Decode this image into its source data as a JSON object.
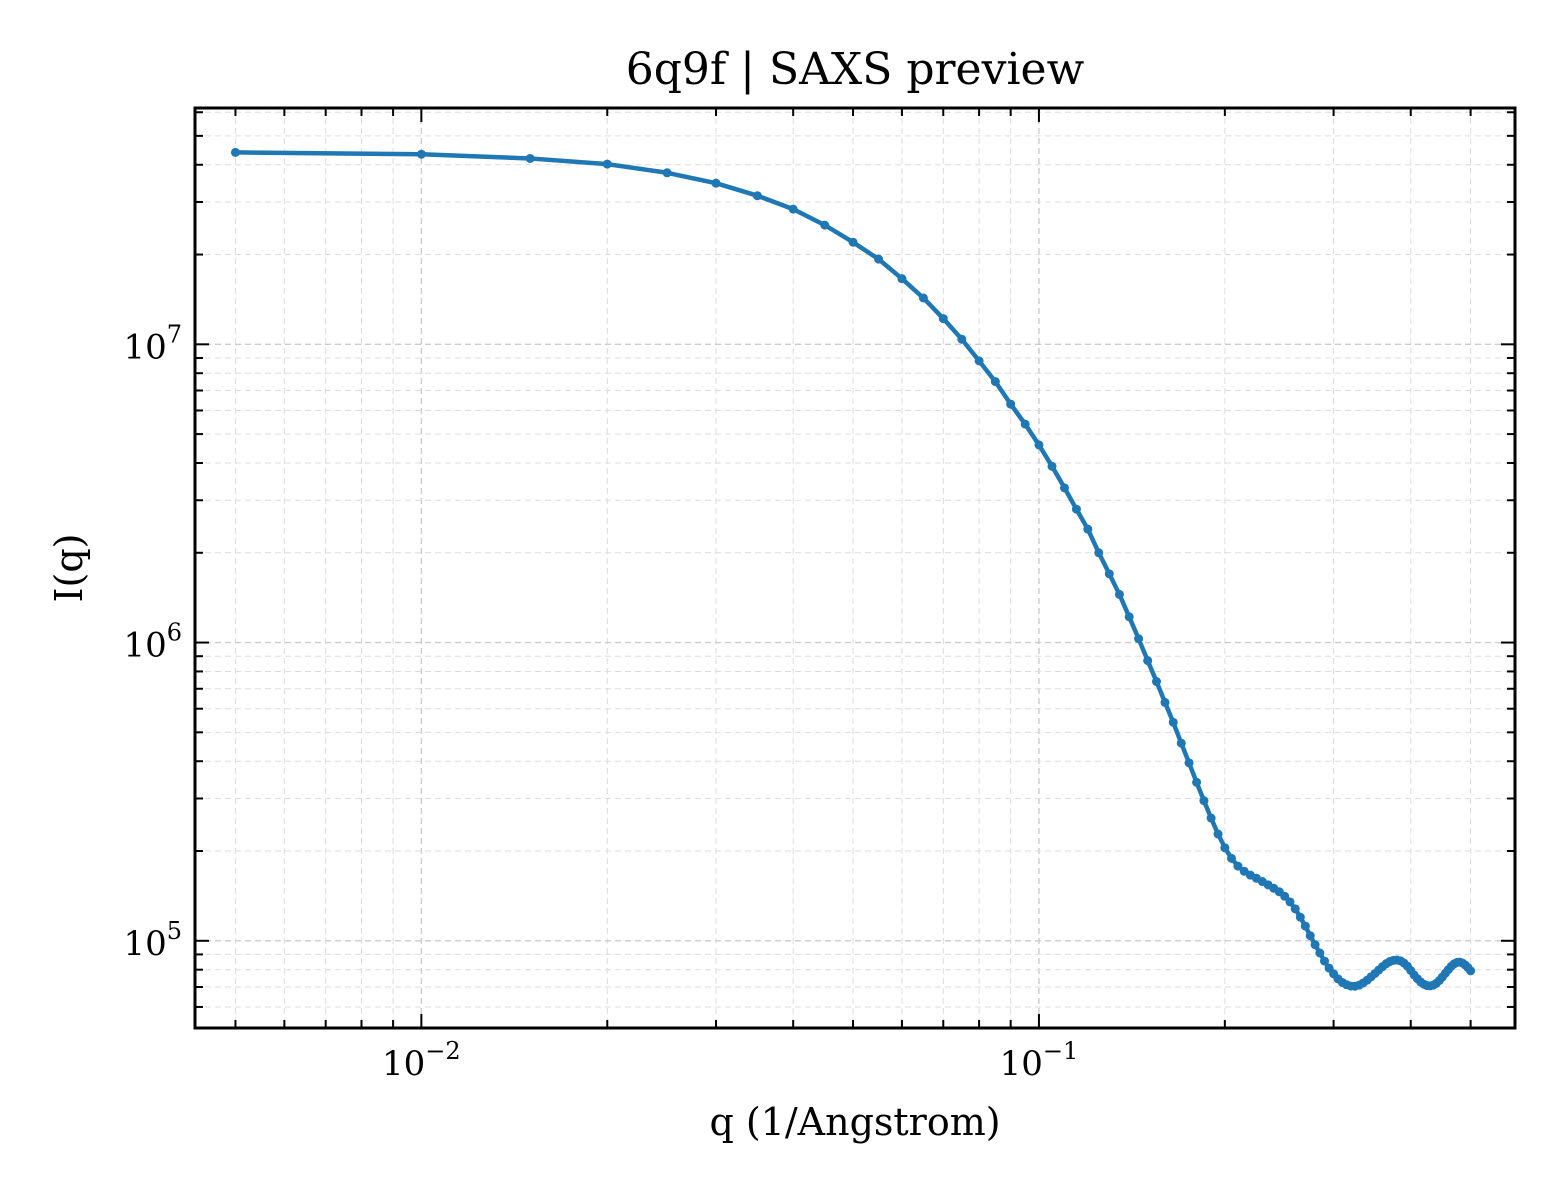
{
  "chart_data": {
    "type": "line",
    "title": "6q9f | SAXS preview",
    "xlabel": "q (1/Angstrom)",
    "ylabel": "I(q)",
    "xscale": "log",
    "yscale": "log",
    "xlim": [
      0.0043,
      0.59
    ],
    "ylim": [
      51000,
      62000000
    ],
    "grid": true,
    "color": "#1f77b4",
    "x_ticks": [
      {
        "base": "10",
        "exp": "−2",
        "value": 0.01
      },
      {
        "base": "10",
        "exp": "−1",
        "value": 0.1
      }
    ],
    "y_ticks": [
      {
        "base": "10",
        "exp": "5",
        "value": 100000
      },
      {
        "base": "10",
        "exp": "6",
        "value": 1000000
      },
      {
        "base": "10",
        "exp": "7",
        "value": 10000000
      }
    ],
    "series": [
      {
        "x": [
          0.005,
          0.01,
          0.015,
          0.02,
          0.025,
          0.03,
          0.035,
          0.04,
          0.045,
          0.05,
          0.055,
          0.06,
          0.065,
          0.07,
          0.075,
          0.08,
          0.085,
          0.09,
          0.095,
          0.1,
          0.105,
          0.11,
          0.115,
          0.12,
          0.125,
          0.13,
          0.135,
          0.14,
          0.145,
          0.15,
          0.155,
          0.16,
          0.165,
          0.17,
          0.175,
          0.18,
          0.185,
          0.19,
          0.195,
          0.2,
          0.205,
          0.21,
          0.215,
          0.22,
          0.225,
          0.23,
          0.235,
          0.24,
          0.245,
          0.25,
          0.255,
          0.26,
          0.265,
          0.27,
          0.275,
          0.28,
          0.285,
          0.29,
          0.295,
          0.3,
          0.305,
          0.31,
          0.315,
          0.32,
          0.325,
          0.33,
          0.335,
          0.34,
          0.345,
          0.35,
          0.355,
          0.36,
          0.365,
          0.37,
          0.375,
          0.38,
          0.385,
          0.39,
          0.395,
          0.4,
          0.405,
          0.41,
          0.415,
          0.42,
          0.425,
          0.43,
          0.435,
          0.44,
          0.445,
          0.45,
          0.455,
          0.46,
          0.465,
          0.47,
          0.475,
          0.48,
          0.485,
          0.49,
          0.495,
          0.5
        ],
        "y": [
          44000000,
          43400000,
          42000000,
          40200000,
          37600000,
          34700000,
          31500000,
          28400000,
          25100000,
          22000000,
          19300000,
          16600000,
          14300000,
          12200000,
          10400000,
          8800000,
          7500000,
          6300000,
          5400000,
          4600000,
          3900000,
          3300000,
          2800000,
          2400000,
          2000000,
          1700000,
          1450000,
          1220000,
          1030000,
          870000,
          740000,
          630000,
          540000,
          460000,
          395000,
          340000,
          295000,
          258000,
          228000,
          205000,
          189000,
          178000,
          171000,
          166000,
          162000,
          158000,
          154000,
          150000,
          146000,
          141000,
          135000,
          128000,
          120000,
          112000,
          104000,
          97000,
          91000,
          85500,
          81000,
          77500,
          74500,
          72500,
          71200,
          70500,
          70400,
          71000,
          72200,
          73800,
          75700,
          77700,
          79800,
          81900,
          83800,
          85200,
          86000,
          86200,
          85600,
          84200,
          82200,
          79500,
          76800,
          74600,
          72800,
          71500,
          70800,
          70600,
          71000,
          72000,
          73600,
          75600,
          77800,
          80000,
          82000,
          83600,
          84600,
          84800,
          84200,
          83000,
          81300,
          79300
        ]
      }
    ]
  }
}
